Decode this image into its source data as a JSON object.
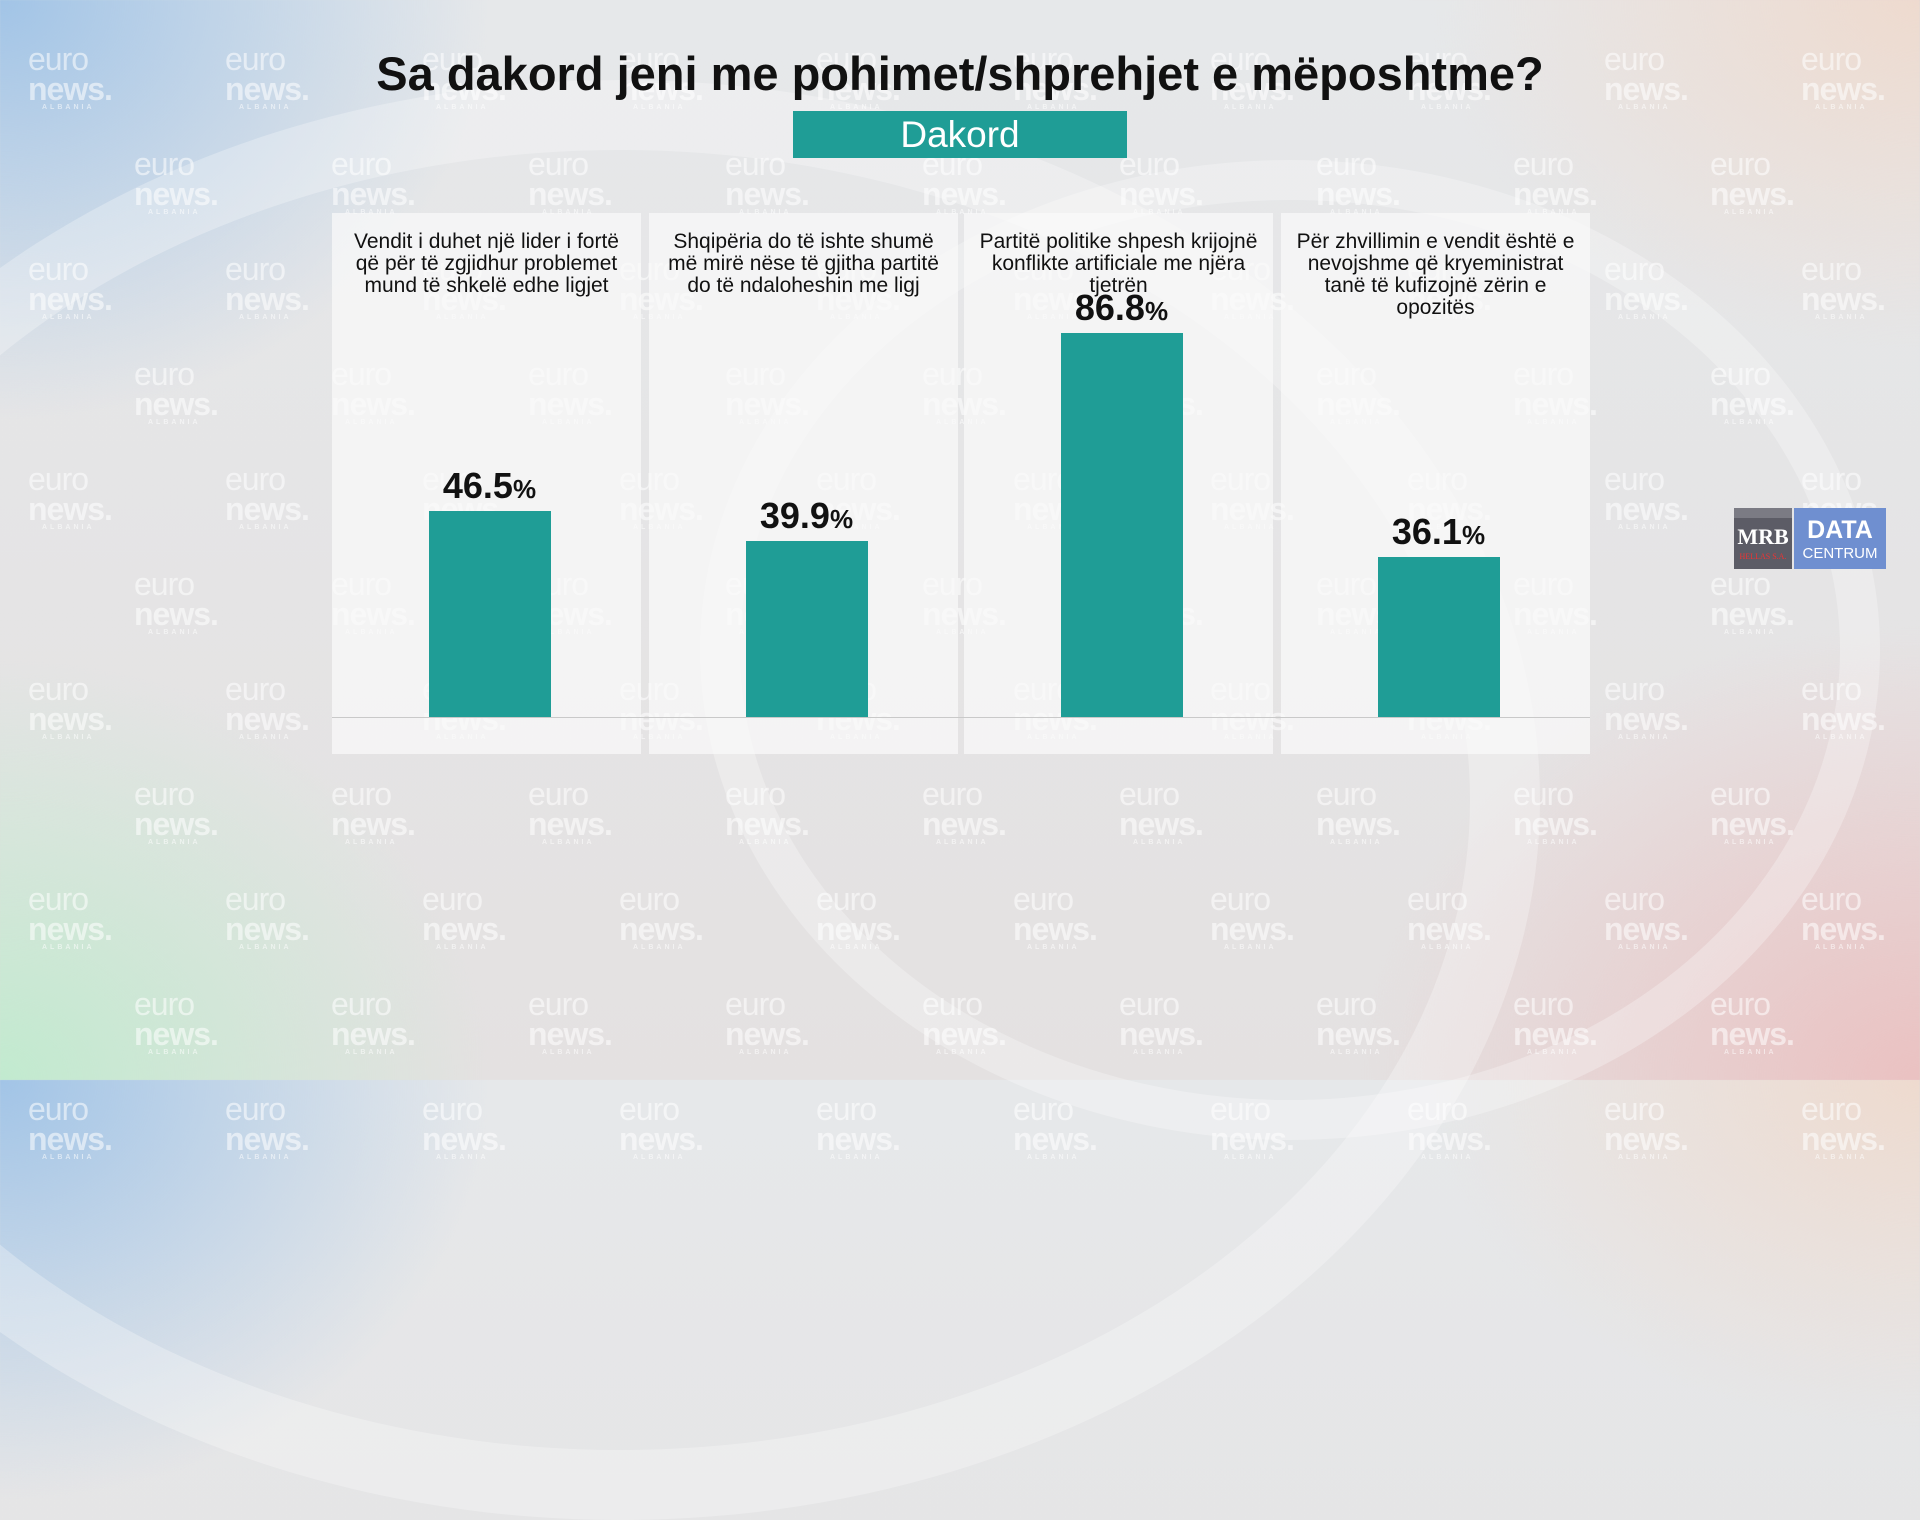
{
  "title": "Sa dakord jeni me pohimet/shprehjet e mëposhtme?",
  "legend_label": "Dakord",
  "watermark": {
    "line1": "euro",
    "line2": "news.",
    "line3": "ALBANIA"
  },
  "logo": {
    "left_main": "MRB",
    "left_sub": "HELLAS S.A.",
    "right_main": "DATA",
    "right_sub": "CENTRUM"
  },
  "colors": {
    "bar": "#1f9d96",
    "legend_bg": "#1f9d96",
    "title": "#111111"
  },
  "chart_data": {
    "type": "bar",
    "title": "Sa dakord jeni me pohimet/shprehjet e mëposhtme?",
    "xlabel": "",
    "ylabel": "",
    "ylim": [
      0,
      100
    ],
    "grid": false,
    "legend_position": "top-center",
    "categories": [
      "Vendit i duhet një lider i fortë që për të zgjidhur problemet mund të shkelë edhe ligjet",
      "Shqipëria do të ishte shumë më mirë nëse të gjitha partitë do të ndaloheshin me ligj",
      "Partitë politike shpesh krijojnë konflikte artificiale me njëra tjetrën",
      "Për zhvillimin e vendit është e nevojshme që kryeministrat tanë të kufizojnë zërin e opozitës"
    ],
    "series": [
      {
        "name": "Dakord",
        "values": [
          46.5,
          39.9,
          86.8,
          36.1
        ],
        "labels": [
          "46.5",
          "39.9",
          "86.8",
          "36.1"
        ],
        "unit": "%"
      }
    ]
  }
}
